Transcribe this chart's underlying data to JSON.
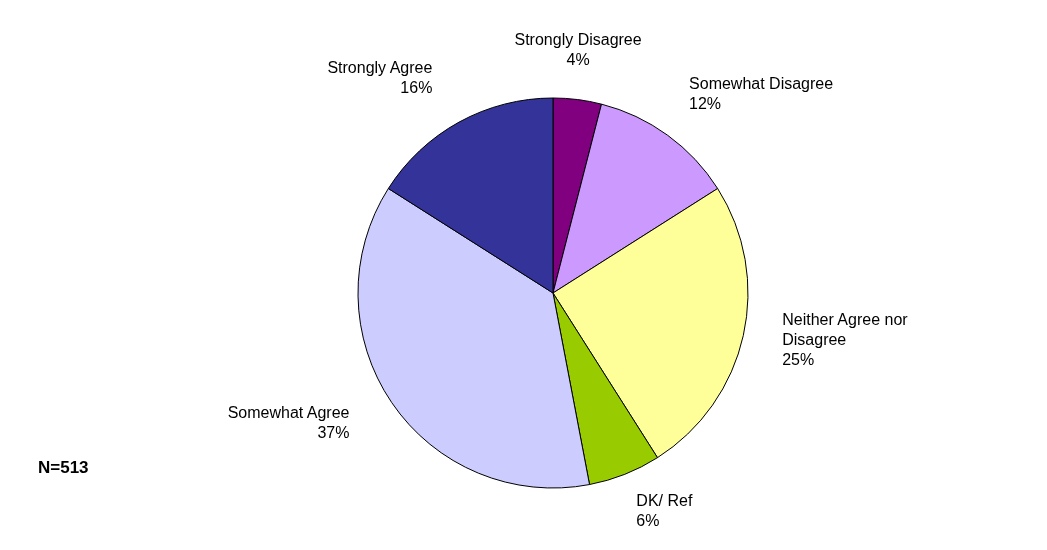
{
  "chart_data": {
    "type": "pie",
    "categories": [
      "Strongly Disagree",
      "Somewhat Disagree",
      "Neither Agree nor Disagree",
      "DK/ Ref",
      "Somewhat Agree",
      "Strongly Agree"
    ],
    "values": [
      4,
      12,
      25,
      6,
      37,
      16
    ],
    "value_labels": [
      "4%",
      "12%",
      "25%",
      "6%",
      "37%",
      "16%"
    ],
    "colors": [
      "#800080",
      "#cc99ff",
      "#ffff99",
      "#99cc00",
      "#ccccff",
      "#333399"
    ],
    "annotations": [
      "N=513"
    ]
  }
}
